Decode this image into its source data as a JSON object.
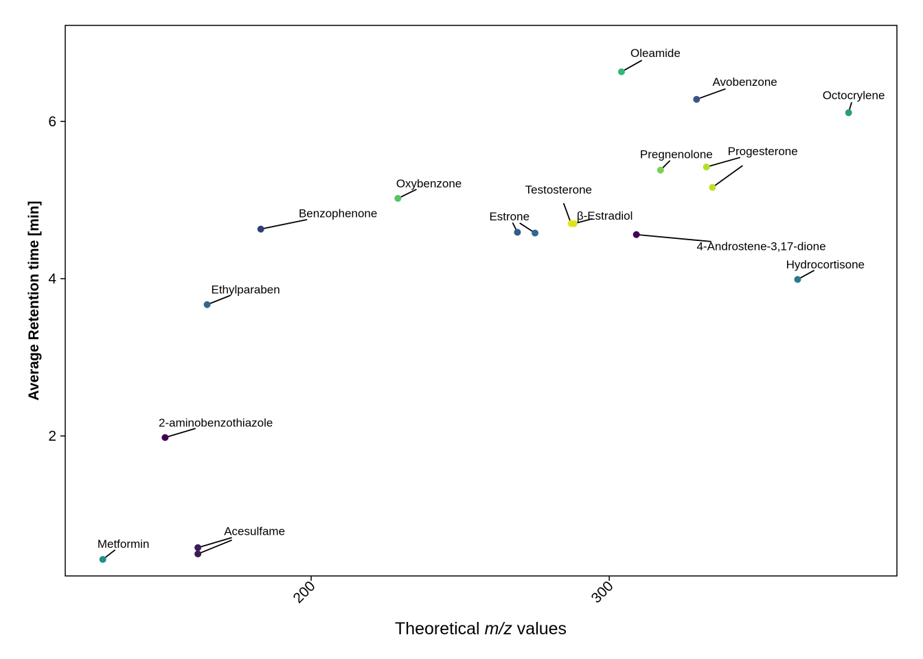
{
  "chart_data": {
    "type": "scatter",
    "title": "",
    "xlabel_parts": [
      "Theoretical ",
      "m/z",
      " values"
    ],
    "ylabel": "Average Retention time [min]",
    "xlim": [
      117.5,
      396.5
    ],
    "ylim": [
      0.22,
      7.22
    ],
    "xticks": [
      200,
      300
    ],
    "yticks": [
      2,
      4,
      6
    ],
    "grid": false,
    "legend": "none",
    "points": [
      {
        "name": "Metformin",
        "x": 130.1,
        "y": 0.43,
        "color": "#21908C"
      },
      {
        "name": "Acesulfame",
        "x": 162.0,
        "y": 0.5,
        "color": "#3B1C5A"
      },
      {
        "name": "Acesulfame",
        "x": 162.0,
        "y": 0.58,
        "color": "#3B1C5A"
      },
      {
        "name": "2-aminobenzothiazole",
        "x": 151.0,
        "y": 1.98,
        "color": "#440154"
      },
      {
        "name": "Ethylparaben",
        "x": 165.1,
        "y": 3.67,
        "color": "#31688E"
      },
      {
        "name": "Benzophenone",
        "x": 183.1,
        "y": 4.63,
        "color": "#2E3F7A"
      },
      {
        "name": "Oxybenzone",
        "x": 229.1,
        "y": 5.02,
        "color": "#54C568"
      },
      {
        "name": "Estrone",
        "x": 269.2,
        "y": 4.59,
        "color": "#2F5E89"
      },
      {
        "name": "Estrone",
        "x": 275.1,
        "y": 4.58,
        "color": "#31688E"
      },
      {
        "name": "Testosterone",
        "x": 287.2,
        "y": 4.7,
        "color": "#E8E419"
      },
      {
        "name": "β-Estradiol",
        "x": 288.2,
        "y": 4.7,
        "color": "#DDE318"
      },
      {
        "name": "4-Androstene-3,17-dione",
        "x": 309.1,
        "y": 4.56,
        "color": "#440154"
      },
      {
        "name": "Oleamide",
        "x": 304.1,
        "y": 6.63,
        "color": "#35B779"
      },
      {
        "name": "Pregnenolone",
        "x": 317.2,
        "y": 5.38,
        "color": "#7AD151"
      },
      {
        "name": "Progesterone",
        "x": 332.6,
        "y": 5.42,
        "color": "#B5DE2B"
      },
      {
        "name": "Progesterone",
        "x": 334.6,
        "y": 5.16,
        "color": "#C2DF23"
      },
      {
        "name": "Avobenzone",
        "x": 329.3,
        "y": 6.28,
        "color": "#3B528B"
      },
      {
        "name": "Octocrylene",
        "x": 380.3,
        "y": 6.11,
        "color": "#2A9D7C"
      },
      {
        "name": "Hydrocortisone",
        "x": 363.2,
        "y": 3.99,
        "color": "#2A788E"
      }
    ],
    "labels": [
      {
        "text": "Metformin",
        "x": 137.0,
        "y": 0.58
      },
      {
        "text": "Acesulfame",
        "x": 181.0,
        "y": 0.74
      },
      {
        "text": "2-aminobenzothiazole",
        "x": 168.0,
        "y": 2.12
      },
      {
        "text": "Ethylparaben",
        "x": 178.0,
        "y": 3.81
      },
      {
        "text": "Benzophenone",
        "x": 209.0,
        "y": 4.78
      },
      {
        "text": "Oxybenzone",
        "x": 239.5,
        "y": 5.16
      },
      {
        "text": "Estrone",
        "x": 266.5,
        "y": 4.74
      },
      {
        "text": "Testosterone",
        "x": 283.0,
        "y": 5.08
      },
      {
        "text": "β-Estradiol",
        "x": 298.5,
        "y": 4.75
      },
      {
        "text": "4-Androstene-3,17-dione",
        "x": 351.0,
        "y": 4.36
      },
      {
        "text": "Oleamide",
        "x": 315.5,
        "y": 6.82
      },
      {
        "text": "Pregnenolone",
        "x": 322.5,
        "y": 5.53
      },
      {
        "text": "Progesterone",
        "x": 351.5,
        "y": 5.57
      },
      {
        "text": "Avobenzone",
        "x": 345.5,
        "y": 6.45
      },
      {
        "text": "Octocrylene",
        "x": 382.0,
        "y": 6.28
      },
      {
        "text": "Hydrocortisone",
        "x": 372.5,
        "y": 4.13
      }
    ]
  }
}
